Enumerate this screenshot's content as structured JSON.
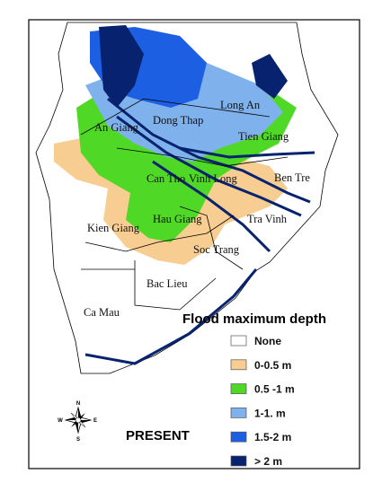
{
  "map": {
    "provinces": [
      {
        "label": "An Giang"
      },
      {
        "label": "Dong Thap"
      },
      {
        "label": "Long An"
      },
      {
        "label": "Tien Giang"
      },
      {
        "label": "Ben Tre"
      },
      {
        "label": "Can Tho"
      },
      {
        "label": "Vinh Long"
      },
      {
        "label": "Tra Vinh"
      },
      {
        "label": "Hau Giang"
      },
      {
        "label": "Kien Giang"
      },
      {
        "label": "Soc Trang"
      },
      {
        "label": "Bac Lieu"
      },
      {
        "label": "Ca Mau"
      }
    ]
  },
  "legend": {
    "title": "Flood maximum depth",
    "items": [
      {
        "label": "None",
        "color": "#ffffff"
      },
      {
        "label": "0-0.5 m",
        "color": "#f7cd91"
      },
      {
        "label": "0.5 -1 m",
        "color": "#4fd825"
      },
      {
        "label": "1-1. m",
        "color": "#7fb2ec"
      },
      {
        "label": "1.5-2 m",
        "color": "#1d5fe3"
      },
      {
        "label": "> 2 m",
        "color": "#07236f"
      }
    ]
  },
  "compass": {
    "n": "N",
    "s": "S",
    "e": "E",
    "w": "W"
  },
  "scenario": "PRESENT"
}
